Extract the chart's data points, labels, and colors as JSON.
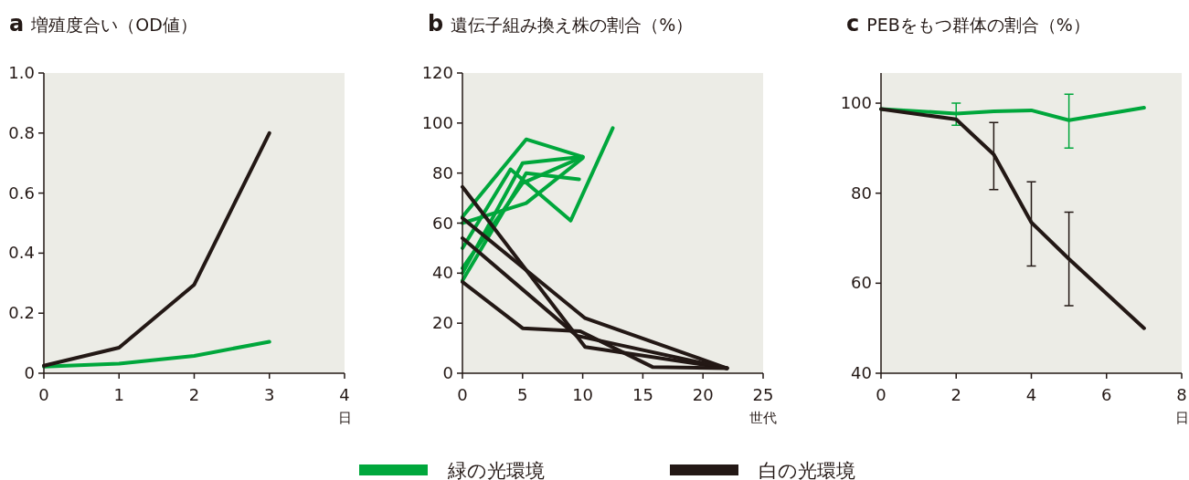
{
  "chart_data": [
    {
      "type": "line",
      "title": "a 増殖度合い（OD値）",
      "xlabel": "日",
      "xlim": [
        0,
        4
      ],
      "xticks": [
        0,
        1,
        2,
        3,
        4
      ],
      "ylim": [
        0,
        1
      ],
      "yticks": [
        0,
        0.2,
        0.4,
        0.6,
        0.8,
        {
          "value": 1,
          "label": "1.0"
        }
      ],
      "legend": "bottom",
      "series": [
        {
          "name": "緑の光環境",
          "color": "#00a73c",
          "x": [
            0,
            1,
            2,
            3
          ],
          "values": [
            0.022,
            0.032,
            0.058,
            0.105
          ]
        },
        {
          "name": "白の光環境",
          "color": "#231815",
          "x": [
            0,
            1,
            2,
            3
          ],
          "values": [
            0.025,
            0.085,
            0.295,
            0.8
          ]
        }
      ]
    },
    {
      "type": "line",
      "title": "b 遺伝子組み換え株の割合（%）",
      "xlabel": "世代",
      "xlim": [
        0,
        25
      ],
      "xticks": [
        0,
        5,
        10,
        15,
        20,
        25
      ],
      "ylim": [
        0,
        120
      ],
      "yticks": [
        0,
        20,
        40,
        60,
        80,
        100,
        120
      ],
      "legend": "bottom",
      "series": [
        {
          "name": "緑の光環境",
          "color": "#00a73c",
          "x": [
            0,
            5.3,
            10
          ],
          "values": [
            62.5,
            93.5,
            86.5
          ]
        },
        {
          "name": "緑の光環境",
          "color": "#00a73c",
          "x": [
            0,
            5.3,
            10
          ],
          "values": [
            60,
            68,
            86
          ]
        },
        {
          "name": "緑の光環境",
          "color": "#00a73c",
          "x": [
            0,
            4,
            9,
            12.5
          ],
          "values": [
            50,
            81.5,
            61,
            98
          ]
        },
        {
          "name": "緑の光環境",
          "color": "#00a73c",
          "x": [
            0,
            5,
            10
          ],
          "values": [
            40,
            84,
            86.5
          ]
        },
        {
          "name": "緑の光環境",
          "color": "#00a73c",
          "x": [
            0,
            5.3,
            9.7
          ],
          "values": [
            37,
            80,
            77.5
          ]
        },
        {
          "name": "緑の光環境",
          "color": "#00a73c",
          "x": [
            0,
            5,
            10
          ],
          "values": [
            42,
            76,
            86.5
          ]
        },
        {
          "name": "白の光環境",
          "color": "#231815",
          "x": [
            0,
            10.2,
            22
          ],
          "values": [
            74.5,
            10.5,
            2
          ]
        },
        {
          "name": "白の光環境",
          "color": "#231815",
          "x": [
            0,
            10.2,
            22
          ],
          "values": [
            62,
            22,
            2
          ]
        },
        {
          "name": "白の光環境",
          "color": "#231815",
          "x": [
            0,
            9.5,
            22
          ],
          "values": [
            54,
            15,
            2
          ]
        },
        {
          "name": "白の光環境",
          "color": "#231815",
          "x": [
            0,
            5,
            9.8,
            15.8,
            22
          ],
          "values": [
            36.5,
            18,
            16.8,
            2.5,
            2
          ]
        }
      ]
    },
    {
      "type": "line",
      "title": "c PEBをもつ群体の割合（%）",
      "xlabel": "日",
      "xlim": [
        0,
        8
      ],
      "xticks": [
        0,
        2,
        4,
        6,
        8
      ],
      "ylim": [
        40,
        106.7
      ],
      "yticks": [
        40,
        60,
        80,
        100
      ],
      "legend": "bottom",
      "series": [
        {
          "name": "緑の光環境",
          "color": "#00a73c",
          "x": [
            0,
            2,
            3,
            4,
            5,
            7
          ],
          "values": [
            98.7,
            97.7,
            98.2,
            98.4,
            96.2,
            99
          ],
          "errors": [
            null,
            [
              95.1,
              100
            ],
            null,
            null,
            [
              90,
              102
            ],
            null
          ]
        },
        {
          "name": "白の光環境",
          "color": "#231815",
          "x": [
            0,
            2,
            3,
            4,
            5,
            7
          ],
          "values": [
            98.7,
            96.4,
            88.6,
            73.5,
            65.4,
            50
          ],
          "errors": [
            null,
            null,
            [
              80.8,
              95.7
            ],
            [
              63.8,
              82.5
            ],
            [
              55,
              75.8
            ],
            null
          ]
        }
      ]
    }
  ]
}
